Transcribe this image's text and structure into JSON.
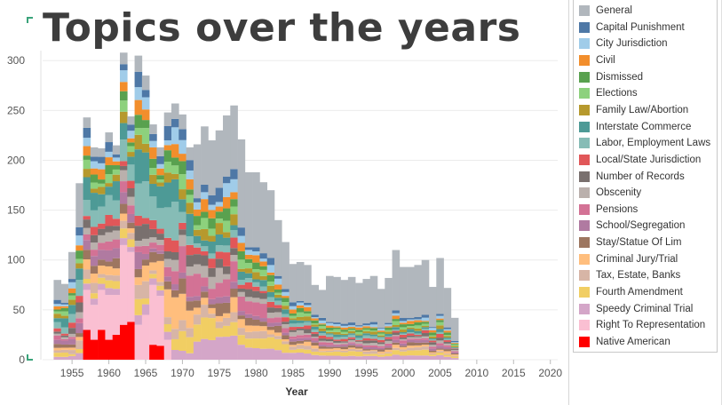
{
  "title": "Topics over the years",
  "chart_data": {
    "type": "bar",
    "stacked": true,
    "title": "Topics over the years",
    "xlabel": "Year",
    "ylabel": "",
    "xlim": [
      1951,
      2021
    ],
    "ylim": [
      0,
      310
    ],
    "x_ticks": [
      1955,
      1960,
      1965,
      1970,
      1975,
      1980,
      1985,
      1990,
      1995,
      2000,
      2005,
      2010,
      2015,
      2020
    ],
    "y_ticks": [
      0,
      50,
      100,
      150,
      200,
      250,
      300
    ],
    "grid": "horizontal",
    "legend_position": "right",
    "years_start": 1953,
    "totals": [
      80,
      76,
      108,
      177,
      243,
      213,
      212,
      228,
      215,
      308,
      244,
      305,
      285,
      236,
      213,
      248,
      257,
      246,
      213,
      216,
      234,
      220,
      230,
      245,
      255,
      221,
      188,
      188,
      178,
      170,
      140,
      118,
      96,
      98,
      95,
      75,
      70,
      84,
      83,
      80,
      83,
      77,
      81,
      84,
      71,
      82,
      110,
      93,
      93,
      95,
      100,
      73,
      102,
      72,
      42
    ],
    "series": [
      {
        "name": "General",
        "color": "#b1b7bd"
      },
      {
        "name": "Capital Punishment",
        "color": "#4e78a6"
      },
      {
        "name": "City Jurisdiction",
        "color": "#a0cce9"
      },
      {
        "name": "Civil",
        "color": "#f28e2c"
      },
      {
        "name": "Dismissed",
        "color": "#59a14f"
      },
      {
        "name": "Elections",
        "color": "#8dd17d"
      },
      {
        "name": "Family Law/Abortion",
        "color": "#b6992d"
      },
      {
        "name": "Interstate Commerce",
        "color": "#4d9a96"
      },
      {
        "name": "Labor, Employment Laws",
        "color": "#86bcb6"
      },
      {
        "name": "Local/State Jurisdiction",
        "color": "#e15759"
      },
      {
        "name": "Number of Records",
        "color": "#79706e"
      },
      {
        "name": "Obscenity",
        "color": "#bab0ac"
      },
      {
        "name": "Pensions",
        "color": "#d37295"
      },
      {
        "name": "School/Segregation",
        "color": "#b07aa1"
      },
      {
        "name": "Stay/Statue Of Lim",
        "color": "#9d7660"
      },
      {
        "name": "Criminal Jury/Trial",
        "color": "#ffbe7d"
      },
      {
        "name": "Tax, Estate, Banks",
        "color": "#d7b5a6"
      },
      {
        "name": "Fourth Amendment",
        "color": "#f1ce63"
      },
      {
        "name": "Speedy Criminal Trial",
        "color": "#d4a6c8"
      },
      {
        "name": "Right To Representation",
        "color": "#fabfd2"
      },
      {
        "name": "Native American",
        "color": "#ff0000"
      }
    ],
    "native_american": [
      0,
      0,
      0,
      0,
      30,
      20,
      30,
      20,
      25,
      35,
      38,
      0,
      0,
      15,
      14,
      0
    ],
    "right_to_representation": [
      0,
      0,
      0,
      0,
      40,
      35,
      40,
      45,
      40,
      80,
      70,
      35,
      45,
      60,
      50,
      20
    ]
  }
}
